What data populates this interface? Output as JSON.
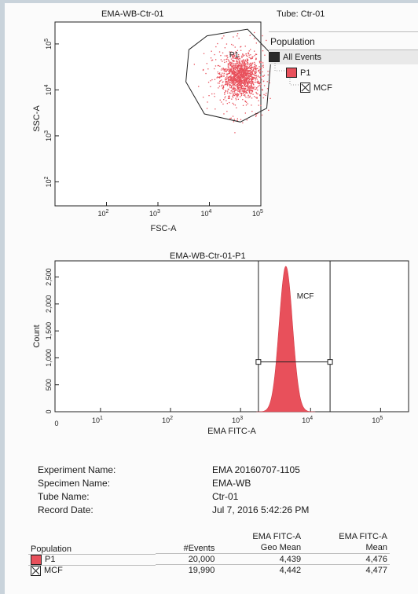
{
  "scatter": {
    "title": "EMA-WB-Ctr-01",
    "xlabel": "FSC-A",
    "ylabel": "SSC-A",
    "x_ticks": [
      "10",
      "10",
      "10",
      "10"
    ],
    "x_tick_exps": [
      "2",
      "3",
      "4",
      "5"
    ],
    "y_ticks": [
      "10",
      "10",
      "10",
      "10"
    ],
    "y_tick_exps": [
      "2",
      "3",
      "4",
      "5"
    ],
    "gate_label": "P1"
  },
  "tube_label": "Tube:  Ctr-01",
  "hierarchy": {
    "header": "Population",
    "items": [
      {
        "label": "All Events",
        "color": "#2b2b2b"
      },
      {
        "label": "P1",
        "color": "#e8505b"
      },
      {
        "label": "MCF",
        "color": "#ffffff"
      }
    ]
  },
  "histogram": {
    "title": "EMA-WB-Ctr-01-P1",
    "xlabel": "EMA FITC-A",
    "ylabel": "Count",
    "y_ticks": [
      "0",
      "500",
      "1,000",
      "1,500",
      "2,000",
      "2,500"
    ],
    "x_zero": "0",
    "x_ticks": [
      "10",
      "10",
      "10",
      "10",
      "10"
    ],
    "x_tick_exps": [
      "1",
      "2",
      "3",
      "4",
      "5"
    ],
    "gate_label": "MCF"
  },
  "chart_data": [
    {
      "type": "scatter",
      "title": "EMA-WB-Ctr-01",
      "xlabel": "FSC-A",
      "ylabel": "SSC-A",
      "x_scale": "log",
      "y_scale": "log",
      "xlim": [
        10,
        100000
      ],
      "ylim": [
        30,
        300000
      ],
      "series": [
        {
          "name": "P1",
          "center_x": 40000,
          "center_y": 20000,
          "color": "#e8505b"
        }
      ],
      "gate": {
        "name": "P1",
        "polygon": [
          [
            4000,
            75000
          ],
          [
            9000,
            150000
          ],
          [
            55000,
            210000
          ],
          [
            160000,
            60000
          ],
          [
            130000,
            4000
          ],
          [
            40000,
            2000
          ],
          [
            8000,
            3000
          ],
          [
            3500,
            15000
          ]
        ]
      }
    },
    {
      "type": "area",
      "title": "EMA-WB-Ctr-01-P1",
      "xlabel": "EMA FITC-A",
      "ylabel": "Count",
      "x_scale": "log",
      "ylim": [
        0,
        2800
      ],
      "y_ticks": [
        0,
        500,
        1000,
        1500,
        2000,
        2500
      ],
      "peak_x": 4440,
      "peak_count": 2700,
      "color": "#e8505b",
      "gate": {
        "name": "MCF",
        "x_range": [
          1800,
          19000
        ]
      }
    }
  ],
  "experiment": {
    "rows": [
      {
        "label": "Experiment Name:",
        "value": "EMA 20160707-1105"
      },
      {
        "label": "Specimen Name:",
        "value": "EMA-WB"
      },
      {
        "label": "Tube Name:",
        "value": "Ctr-01"
      },
      {
        "label": "Record Date:",
        "value": "Jul 7, 2016 5:42:26 PM"
      }
    ]
  },
  "stats": {
    "headers": {
      "population": "Population",
      "events": "#Events",
      "geo_top": "EMA FITC-A",
      "geo_bottom": "Geo Mean",
      "mean_top": "EMA FITC-A",
      "mean_bottom": "Mean"
    },
    "rows": [
      {
        "population": "P1",
        "events": "20,000",
        "geo_mean": "4,439",
        "mean": "4,476",
        "color": "#e8505b"
      },
      {
        "population": "MCF",
        "events": "19,990",
        "geo_mean": "4,442",
        "mean": "4,477",
        "color": "#ffffff"
      }
    ]
  }
}
